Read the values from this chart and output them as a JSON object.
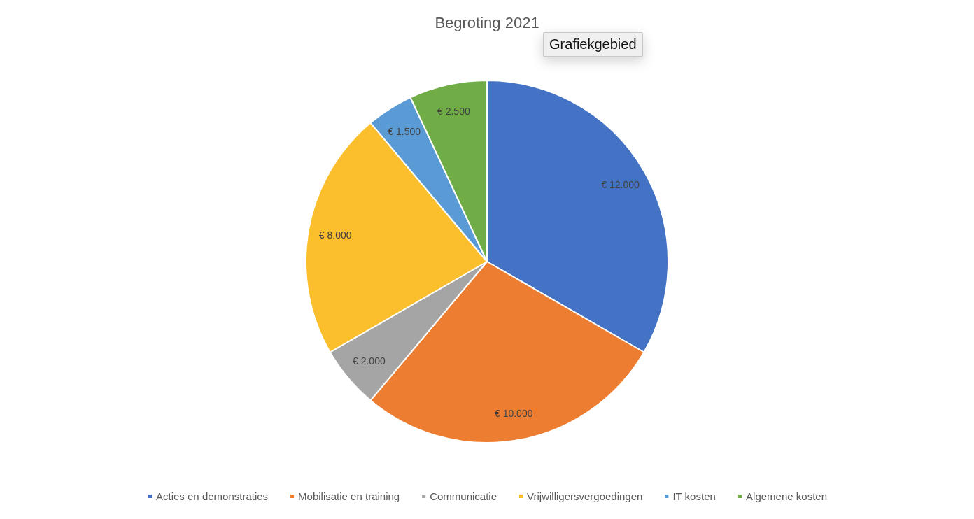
{
  "chart_data": {
    "type": "pie",
    "title": "Begroting 2021",
    "categories": [
      "Acties en demonstraties",
      "Mobilisatie en training",
      "Communicatie",
      "Vrijwilligersvergoedingen",
      "IT kosten",
      "Algemene kosten"
    ],
    "values": [
      12000,
      10000,
      2000,
      8000,
      1500,
      2500
    ],
    "colors": [
      "#4472c4",
      "#ed7d31",
      "#a5a5a5",
      "#fbbf2d",
      "#5b9bd5",
      "#70ad47"
    ],
    "value_labels": [
      "€ 12.000",
      "€ 10.000",
      "€ 2.000",
      "€ 8.000",
      "€ 1.500",
      "€ 2.500"
    ],
    "legend": "bottom",
    "annotations": [
      "Grafiekgebied"
    ]
  }
}
